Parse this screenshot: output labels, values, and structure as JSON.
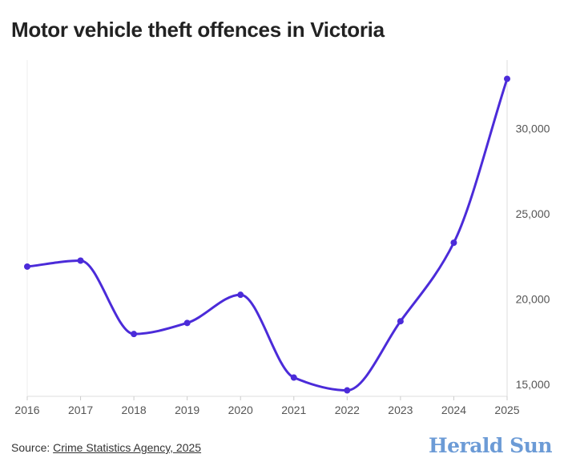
{
  "title": "Motor vehicle theft offences in Victoria",
  "source": {
    "prefix": "Source: ",
    "link_text": "Crime Statistics Agency, 2025"
  },
  "brand": "Herald Sun",
  "colors": {
    "line": "#4b2bd9",
    "axis": "#dddddd",
    "brand": "#6c9bd6"
  },
  "chart_data": {
    "type": "line",
    "x": [
      "2016",
      "2017",
      "2018",
      "2019",
      "2020",
      "2021",
      "2022",
      "2023",
      "2024",
      "2025"
    ],
    "series": [
      {
        "values": [
          21900,
          22250,
          17950,
          18600,
          20250,
          15400,
          14650,
          18700,
          23300,
          32900
        ]
      }
    ],
    "y_ticks": [
      15000,
      20000,
      25000,
      30000
    ],
    "y_tick_labels": [
      "15,000",
      "20,000",
      "25,000",
      "30,000"
    ],
    "ylim": [
      14300,
      34000
    ],
    "y_axis_side": "right",
    "grid": false,
    "markers": true,
    "smooth": true
  }
}
